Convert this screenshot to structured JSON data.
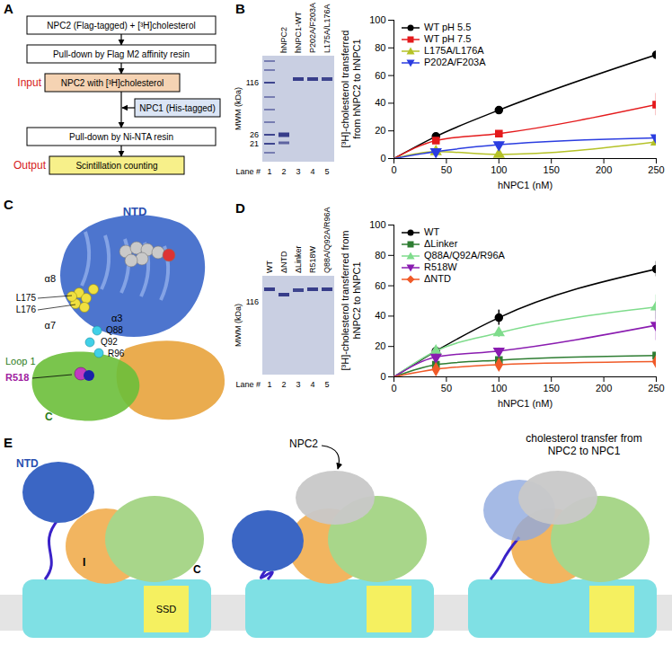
{
  "panels": {
    "A": {
      "letter": "A",
      "start": "NPC2 (Flag-tagged) + [³H]cholesterol",
      "flag_pulldown": "Pull-down by Flag M2 affinity resin",
      "input_label": "Input",
      "input_box": "NPC2 with [³H]cholesterol",
      "npc1_box": "NPC1 (His-tagged)",
      "ni_pulldown": "Pull-down by Ni-NTA resin",
      "output_label": "Output",
      "output_box": "Scintillation counting"
    },
    "B_gel": {
      "letter": "B",
      "axis_label": "MWM (kDa)",
      "markers": [
        116,
        26,
        21
      ],
      "lanes": [
        "hNPC2",
        "hNPC1-WT",
        "P202A/F203A",
        "L175A/L176A"
      ],
      "lane_title": "Lane #",
      "lane_numbers": [
        1,
        2,
        3,
        4,
        5
      ]
    },
    "C": {
      "letter": "C",
      "ntd": "NTD",
      "helices": [
        "α8",
        "α7",
        "α3"
      ],
      "yellow_residues": [
        "L175",
        "L176"
      ],
      "cyan_residues": [
        "Q88",
        "Q92",
        "R96"
      ],
      "loop": "Loop 1",
      "mutation": "R518",
      "c_domain": "C"
    },
    "D_gel": {
      "letter": "D",
      "axis_label": "MWM (kDa)",
      "markers": [
        116
      ],
      "lanes": [
        "WT",
        "ΔNTD",
        "ΔLinker",
        "R518W",
        "Q88A/Q92A/R96A"
      ],
      "lane_title": "Lane #",
      "lane_numbers": [
        1,
        2,
        3,
        4,
        5
      ]
    },
    "E": {
      "letter": "E",
      "ntd": "NTD",
      "domain_i": "I",
      "domain_c": "C",
      "ssd": "SSD",
      "npc2": "NPC2",
      "transfer": "cholesterol transfer from NPC2 to NPC1"
    }
  },
  "chart_data": [
    {
      "type": "line",
      "x_label": "hNPC1 (nM)",
      "y_label": "[³H]-cholesterol transferred from hNPC2 to hNPC1",
      "x": [
        0,
        40,
        100,
        250
      ],
      "xlim": [
        0,
        250
      ],
      "xticks": [
        0,
        50,
        100,
        150,
        200,
        250
      ],
      "ylim": [
        0,
        100
      ],
      "yticks": [
        0,
        20,
        40,
        60,
        80,
        100
      ],
      "legend": "top-left",
      "series": [
        {
          "name": "WT pH 5.5",
          "color": "#000000",
          "marker": "circle",
          "values": [
            0,
            16,
            35,
            75
          ],
          "errors": [
            null,
            2,
            1,
            3
          ]
        },
        {
          "name": "WT pH 7.5",
          "color": "#e41a1c",
          "marker": "square",
          "values": [
            0,
            13,
            18,
            39
          ],
          "errors": [
            null,
            2,
            2,
            8
          ]
        },
        {
          "name": "L175A/L176A",
          "color": "#b5c227",
          "marker": "triangle-up",
          "values": [
            0,
            5,
            3,
            12
          ],
          "errors": [
            null,
            1,
            1,
            2
          ]
        },
        {
          "name": "P202A/F203A",
          "color": "#2b3de0",
          "marker": "triangle-down",
          "values": [
            0,
            5,
            10,
            15
          ],
          "errors": [
            null,
            1,
            2,
            2
          ]
        }
      ]
    },
    {
      "type": "line",
      "x_label": "hNPC1 (nM)",
      "y_label": "[³H]-cholesterol transferred from hNPC2 to hNPC1",
      "x": [
        0,
        40,
        100,
        250
      ],
      "xlim": [
        0,
        250
      ],
      "xticks": [
        0,
        50,
        100,
        150,
        200,
        250
      ],
      "ylim": [
        0,
        100
      ],
      "yticks": [
        0,
        20,
        40,
        60,
        80,
        100
      ],
      "legend": "top-left",
      "series": [
        {
          "name": "WT",
          "color": "#000000",
          "marker": "circle",
          "values": [
            0,
            17,
            39,
            71
          ],
          "errors": [
            null,
            3,
            5,
            5
          ]
        },
        {
          "name": "ΔLinker",
          "color": "#2e7d32",
          "marker": "square",
          "values": [
            0,
            8,
            11,
            14
          ],
          "errors": [
            null,
            1,
            1,
            1
          ]
        },
        {
          "name": "Q88A/Q92A/R96A",
          "color": "#7fdc8c",
          "marker": "triangle-up",
          "values": [
            0,
            17,
            29,
            46
          ],
          "errors": [
            null,
            2,
            3,
            8
          ]
        },
        {
          "name": "R518W",
          "color": "#8a1cb0",
          "marker": "triangle-down",
          "values": [
            0,
            13,
            17,
            34
          ],
          "errors": [
            null,
            2,
            2,
            10
          ]
        },
        {
          "name": "ΔNTD",
          "color": "#f05a28",
          "marker": "diamond",
          "values": [
            0,
            5,
            8,
            10
          ],
          "errors": [
            null,
            1,
            1,
            3
          ]
        }
      ]
    }
  ]
}
